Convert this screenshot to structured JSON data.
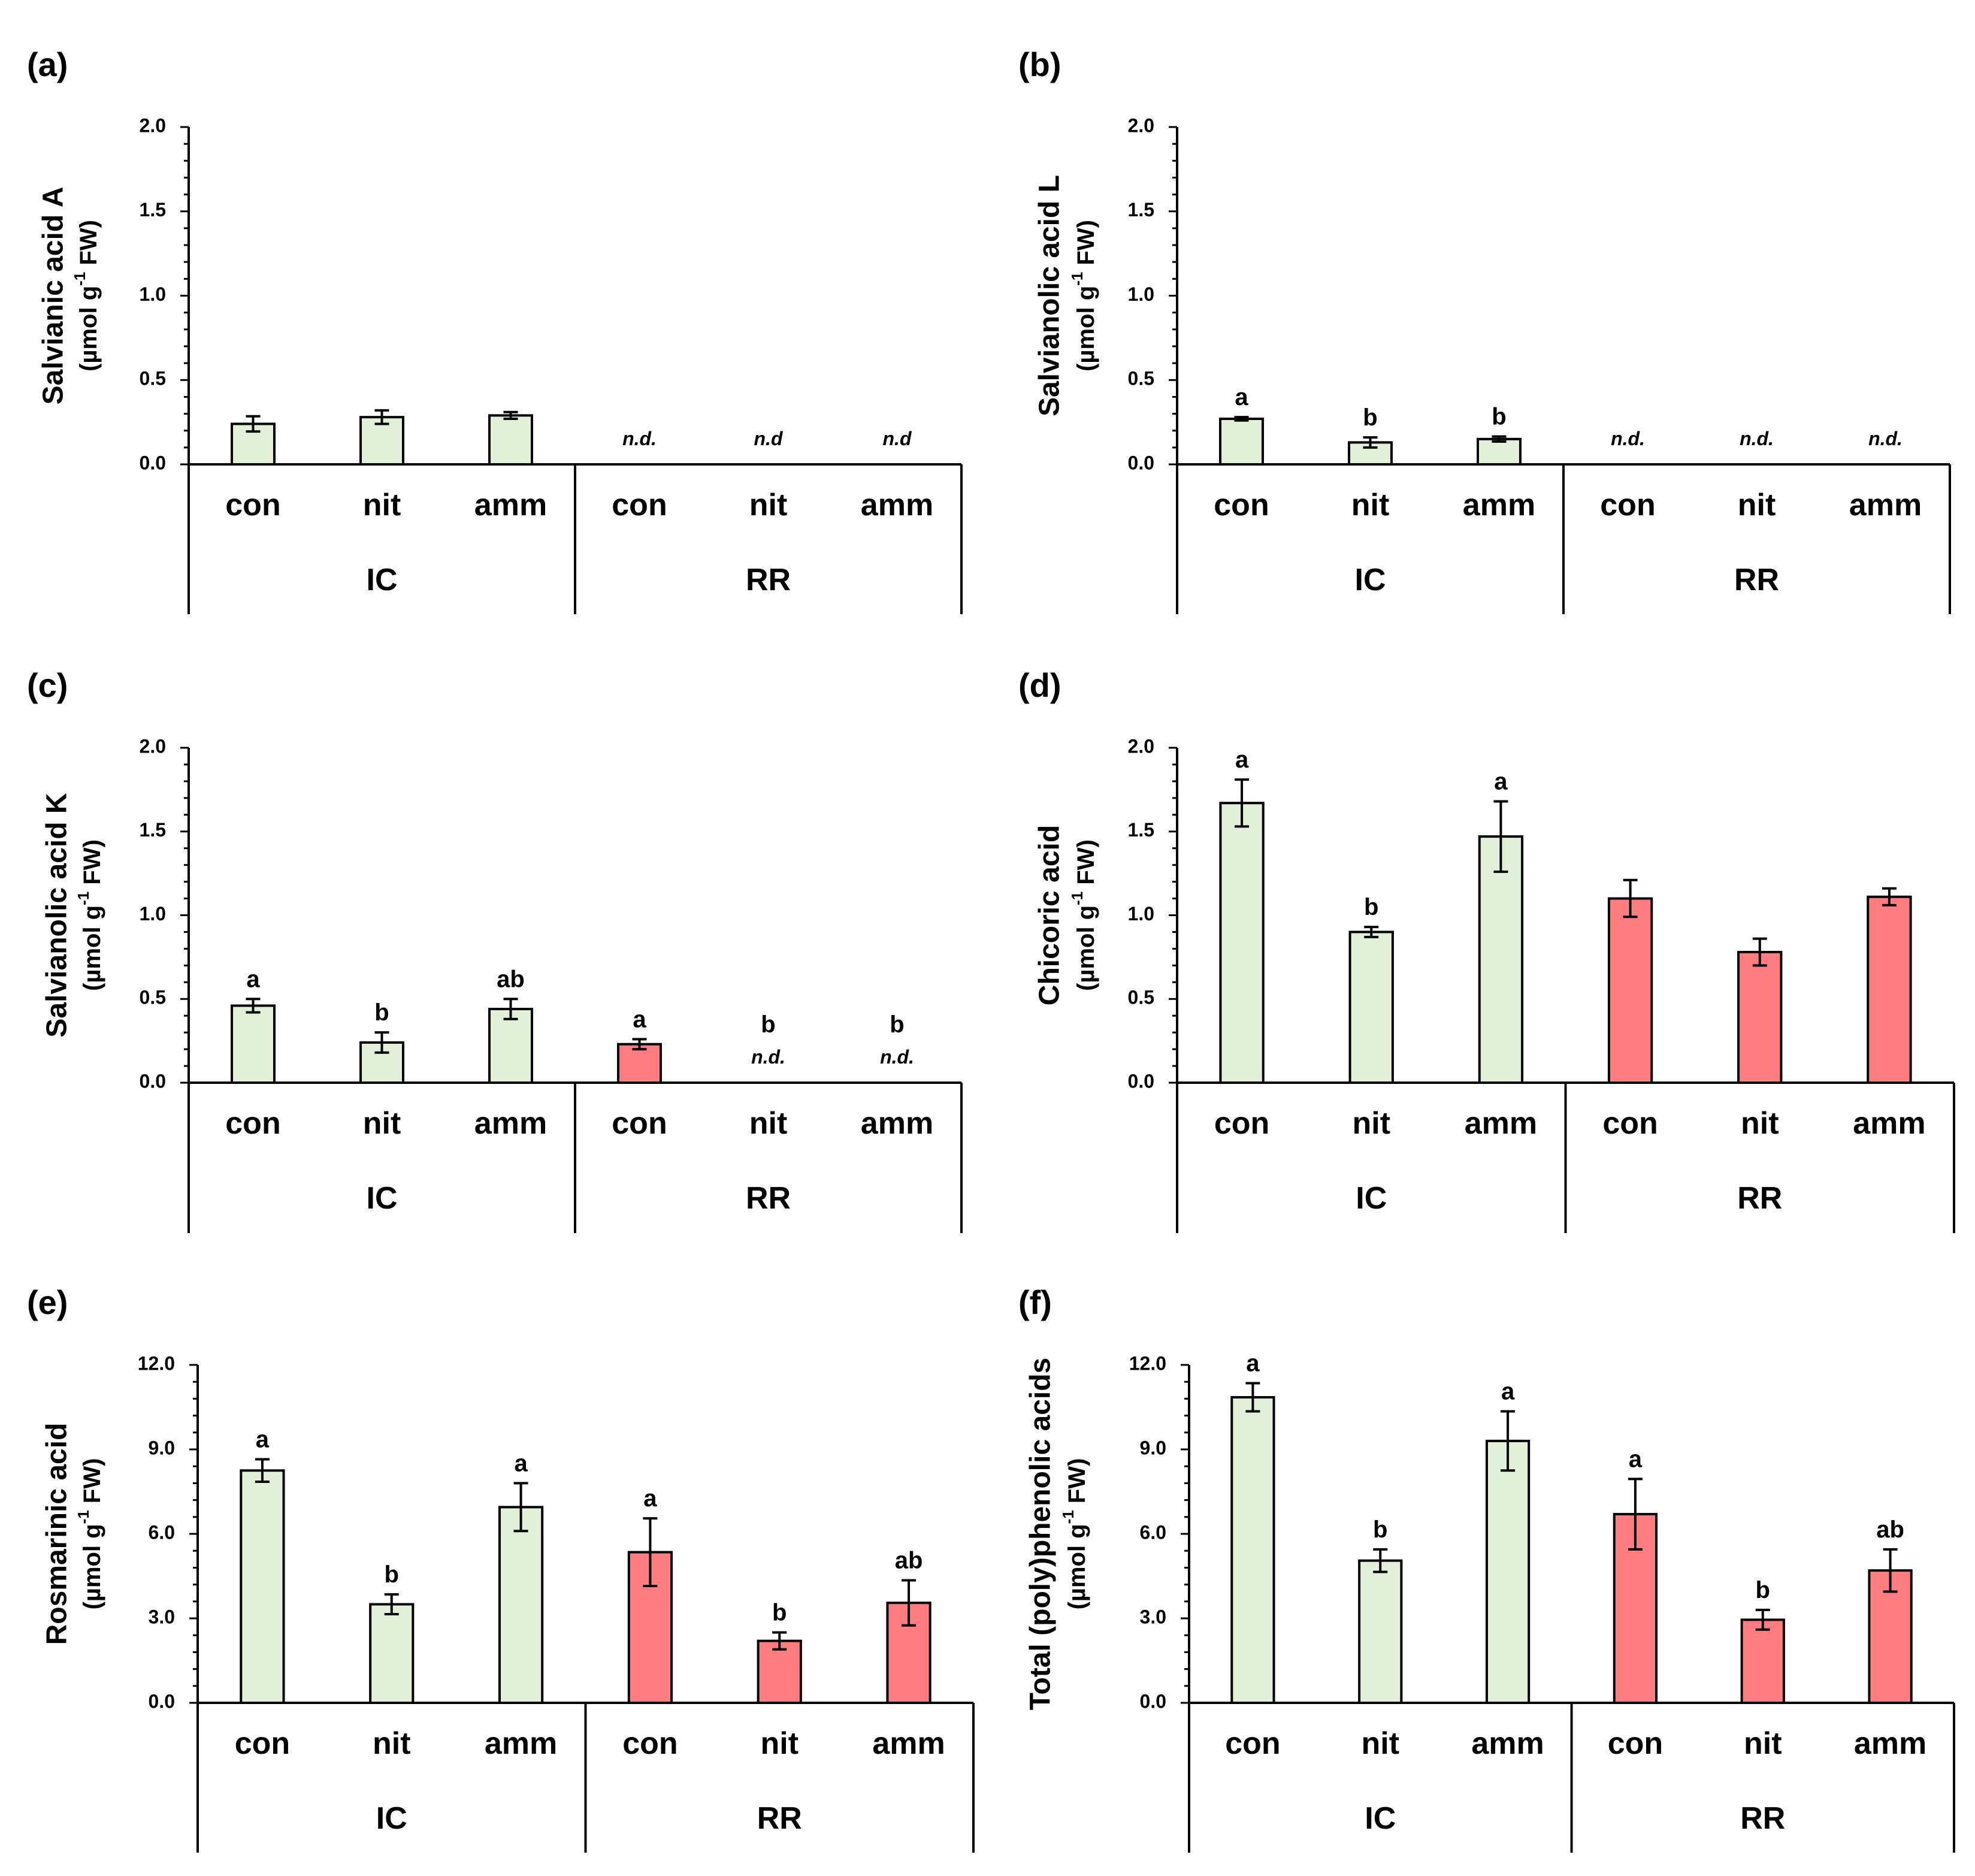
{
  "colors": {
    "IC": "#e2f0d9",
    "RR": "#ff7c80"
  },
  "chart_data": [
    {
      "panel": "(a)",
      "type": "bar",
      "ylabel": "Salvianic  acid A",
      "yunit": "(µmol g-1 FW)",
      "ylim": [
        0,
        2
      ],
      "yticks": [
        "0.0",
        "0.5",
        "1.0",
        "1.5",
        "2.0"
      ],
      "categories": [
        "con",
        "nit",
        "amm",
        "con",
        "nit",
        "amm"
      ],
      "groups": [
        "IC",
        "RR"
      ],
      "values": [
        0.24,
        0.28,
        0.29,
        null,
        null,
        null
      ],
      "errors": [
        0.045,
        0.04,
        0.02,
        null,
        null,
        null
      ],
      "sig": [
        "",
        "",
        "",
        "",
        "",
        ""
      ],
      "nd": [
        "",
        "",
        "",
        "n.d.",
        "n.d",
        "n.d"
      ]
    },
    {
      "panel": "(b)",
      "type": "bar",
      "ylabel": "Salvianolic  acid L",
      "yunit": "(µmol g-1 FW)",
      "ylim": [
        0,
        2
      ],
      "yticks": [
        "0.0",
        "0.5",
        "1.0",
        "1.5",
        "2.0"
      ],
      "categories": [
        "con",
        "nit",
        "amm",
        "con",
        "nit",
        "amm"
      ],
      "groups": [
        "IC",
        "RR"
      ],
      "values": [
        0.27,
        0.13,
        0.15,
        null,
        null,
        null
      ],
      "errors": [
        0.01,
        0.03,
        0.015,
        null,
        null,
        null
      ],
      "sig": [
        "a",
        "b",
        "b",
        "",
        "",
        ""
      ],
      "nd": [
        "",
        "",
        "",
        "n.d.",
        "n.d.",
        "n.d."
      ]
    },
    {
      "panel": "(c)",
      "type": "bar",
      "ylabel": "Salvianolic  acid K",
      "yunit": "(µmol g-1 FW)",
      "ylim": [
        0,
        2
      ],
      "yticks": [
        "0.0",
        "0.5",
        "1.0",
        "1.5",
        "2.0"
      ],
      "categories": [
        "con",
        "nit",
        "amm",
        "con",
        "nit",
        "amm"
      ],
      "groups": [
        "IC",
        "RR"
      ],
      "values": [
        0.46,
        0.24,
        0.44,
        0.23,
        null,
        null
      ],
      "errors": [
        0.04,
        0.06,
        0.06,
        0.03,
        null,
        null
      ],
      "sig": [
        "a",
        "b",
        "ab",
        "a",
        "b",
        "b"
      ],
      "nd": [
        "",
        "",
        "",
        "",
        "n.d.",
        "n.d."
      ]
    },
    {
      "panel": "(d)",
      "type": "bar",
      "ylabel": "Chicoric  acid",
      "yunit": "(µmol g-1 FW)",
      "ylim": [
        0,
        2
      ],
      "yticks": [
        "0.0",
        "0.5",
        "1.0",
        "1.5",
        "2.0"
      ],
      "categories": [
        "con",
        "nit",
        "amm",
        "con",
        "nit",
        "amm"
      ],
      "groups": [
        "IC",
        "RR"
      ],
      "values": [
        1.67,
        0.9,
        1.47,
        1.1,
        0.78,
        1.11
      ],
      "errors": [
        0.14,
        0.03,
        0.21,
        0.11,
        0.08,
        0.05
      ],
      "sig": [
        "a",
        "b",
        "a",
        "",
        "",
        ""
      ],
      "nd": [
        "",
        "",
        "",
        "",
        "",
        ""
      ]
    },
    {
      "panel": "(e)",
      "type": "bar",
      "ylabel": "Rosmarinic acid",
      "yunit": "(µmol g-1 FW)",
      "ylim": [
        0,
        12
      ],
      "yticks": [
        "0.0",
        "3.0",
        "6.0",
        "9.0",
        "12.0"
      ],
      "categories": [
        "con",
        "nit",
        "amm",
        "con",
        "nit",
        "amm"
      ],
      "groups": [
        "IC",
        "RR"
      ],
      "values": [
        8.25,
        3.5,
        6.95,
        5.35,
        2.2,
        3.55
      ],
      "errors": [
        0.4,
        0.35,
        0.85,
        1.2,
        0.3,
        0.8
      ],
      "sig": [
        "a",
        "b",
        "a",
        "a",
        "b",
        "ab"
      ],
      "nd": [
        "",
        "",
        "",
        "",
        "",
        ""
      ]
    },
    {
      "panel": "(f)",
      "type": "bar",
      "ylabel": "Total (poly)phenolic acids",
      "yunit": "(µmol g-1 FW)",
      "ylim": [
        0,
        12
      ],
      "yticks": [
        "0.0",
        "3.0",
        "6.0",
        "9.0",
        "12.0"
      ],
      "categories": [
        "con",
        "nit",
        "amm",
        "con",
        "nit",
        "amm"
      ],
      "groups": [
        "IC",
        "RR"
      ],
      "values": [
        10.85,
        5.05,
        9.3,
        6.7,
        2.95,
        4.7
      ],
      "errors": [
        0.5,
        0.4,
        1.05,
        1.25,
        0.35,
        0.75
      ],
      "sig": [
        "a",
        "b",
        "a",
        "a",
        "b",
        "ab"
      ],
      "nd": [
        "",
        "",
        "",
        "",
        "",
        ""
      ]
    }
  ]
}
